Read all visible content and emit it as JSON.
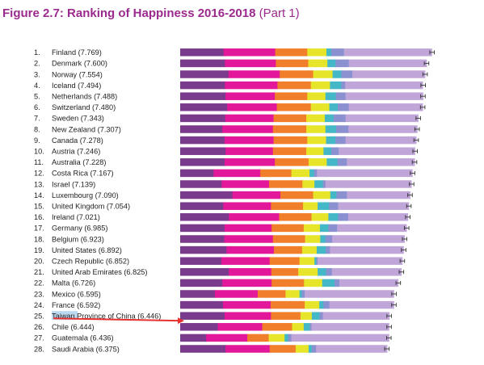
{
  "figure": {
    "title": "Figure 2.7: Ranking of Happiness 2016-2018",
    "part": "(Part 1)"
  },
  "colors": {
    "title": "#9b2a8e",
    "arrow": "#e8302f",
    "highlight": "#bcd8ee",
    "segments": [
      "#7b3b8c",
      "#e3179a",
      "#f07e2a",
      "#e6e52a",
      "#45b8c8",
      "#8a90d0",
      "#c0a6d8"
    ],
    "error_bar": "#333333"
  },
  "chart_data": {
    "type": "bar",
    "orientation": "horizontal",
    "stacked": true,
    "categories": [
      "Finland",
      "Denmark",
      "Norway",
      "Iceland",
      "Netherlands",
      "Switzerland",
      "Sweden",
      "New Zealand",
      "Canada",
      "Austria",
      "Australia",
      "Costa Rica",
      "Israel",
      "Luxembourg",
      "United Kingdom",
      "Ireland",
      "Germany",
      "Belgium",
      "United States",
      "Czech Republic",
      "United Arab Emirates",
      "Malta",
      "Mexico",
      "France",
      "Taiwan Province of China",
      "Chile",
      "Guatemala",
      "Saudi Arabia"
    ],
    "labels": [
      "1. Finland (7.769)",
      "2. Denmark (7.600)",
      "3. Norway (7.554)",
      "4. Iceland (7.494)",
      "5. Netherlands (7.488)",
      "6. Switzerland (7.480)",
      "7. Sweden (7.343)",
      "8. New Zealand (7.307)",
      "9. Canada (7.278)",
      "10. Austria (7.246)",
      "11. Australia (7.228)",
      "12. Costa Rica (7.167)",
      "13. Israel (7.139)",
      "14. Luxembourg (7.090)",
      "15. United Kingdom (7.054)",
      "16. Ireland (7.021)",
      "17. Germany (6.985)",
      "18. Belgium (6.923)",
      "19. United States (6.892)",
      "20. Czech Republic (6.852)",
      "21. United Arab Emirates (6.825)",
      "22. Malta (6.726)",
      "23. Mexico (6.595)",
      "24. France (6.592)",
      "25. Taiwan Province of China (6.446)",
      "26. Chile (6.444)",
      "27. Guatemala (6.436)",
      "28. Saudi Arabia (6.375)"
    ],
    "totals": [
      7.769,
      7.6,
      7.554,
      7.494,
      7.488,
      7.48,
      7.343,
      7.307,
      7.278,
      7.246,
      7.228,
      7.167,
      7.139,
      7.09,
      7.054,
      7.021,
      6.985,
      6.923,
      6.892,
      6.852,
      6.825,
      6.726,
      6.595,
      6.592,
      6.446,
      6.444,
      6.436,
      6.375
    ],
    "segments": [
      [
        1.34,
        1.59,
        0.99,
        0.59,
        0.15,
        0.39,
        2.71
      ],
      [
        1.38,
        1.57,
        1.0,
        0.59,
        0.25,
        0.41,
        2.4
      ],
      [
        1.49,
        1.58,
        1.03,
        0.6,
        0.27,
        0.34,
        2.24
      ],
      [
        1.38,
        1.62,
        1.03,
        0.59,
        0.35,
        0.12,
        2.39
      ],
      [
        1.4,
        1.52,
        1.0,
        0.56,
        0.32,
        0.3,
        2.39
      ],
      [
        1.45,
        1.53,
        1.05,
        0.57,
        0.26,
        0.34,
        2.28
      ],
      [
        1.39,
        1.49,
        1.01,
        0.57,
        0.27,
        0.37,
        2.24
      ],
      [
        1.3,
        1.56,
        1.03,
        0.59,
        0.33,
        0.38,
        2.12
      ],
      [
        1.37,
        1.51,
        1.04,
        0.58,
        0.29,
        0.31,
        2.18
      ],
      [
        1.4,
        1.46,
        1.03,
        0.53,
        0.24,
        0.23,
        2.35
      ],
      [
        1.37,
        1.55,
        1.04,
        0.56,
        0.33,
        0.29,
        2.09
      ],
      [
        1.03,
        1.44,
        0.96,
        0.56,
        0.14,
        0.09,
        2.94
      ],
      [
        1.28,
        1.46,
        1.03,
        0.37,
        0.26,
        0.08,
        2.65
      ],
      [
        1.61,
        1.48,
        1.01,
        0.53,
        0.19,
        0.32,
        1.95
      ],
      [
        1.33,
        1.47,
        0.99,
        0.45,
        0.35,
        0.28,
        2.18
      ],
      [
        1.5,
        1.55,
        1.0,
        0.52,
        0.3,
        0.31,
        1.84
      ],
      [
        1.37,
        1.45,
        0.99,
        0.5,
        0.26,
        0.27,
        2.14
      ],
      [
        1.36,
        1.5,
        0.99,
        0.47,
        0.16,
        0.21,
        2.23
      ],
      [
        1.43,
        1.46,
        0.87,
        0.45,
        0.28,
        0.13,
        2.27
      ],
      [
        1.27,
        1.49,
        0.92,
        0.46,
        0.06,
        0.04,
        2.61
      ],
      [
        1.5,
        1.31,
        0.83,
        0.6,
        0.26,
        0.18,
        2.14
      ],
      [
        1.3,
        1.52,
        1.0,
        0.56,
        0.38,
        0.15,
        1.81
      ],
      [
        1.07,
        1.32,
        0.86,
        0.43,
        0.07,
        0.09,
        2.75
      ],
      [
        1.32,
        1.47,
        1.05,
        0.45,
        0.13,
        0.18,
        1.99
      ],
      [
        1.37,
        1.43,
        0.91,
        0.35,
        0.24,
        0.1,
        2.05
      ],
      [
        1.16,
        1.37,
        0.92,
        0.36,
        0.19,
        0.05,
        2.39
      ],
      [
        0.8,
        1.27,
        0.66,
        0.49,
        0.11,
        0.1,
        3.01
      ],
      [
        1.4,
        1.36,
        0.8,
        0.4,
        0.1,
        0.13,
        2.19
      ]
    ],
    "error_margin": 0.07,
    "xlim": [
      0,
      8.1
    ],
    "highlight": {
      "category": "Taiwan Province of China",
      "label_highlighted": "Taiwan",
      "arrow": true
    },
    "legend": "none",
    "grid": false
  }
}
